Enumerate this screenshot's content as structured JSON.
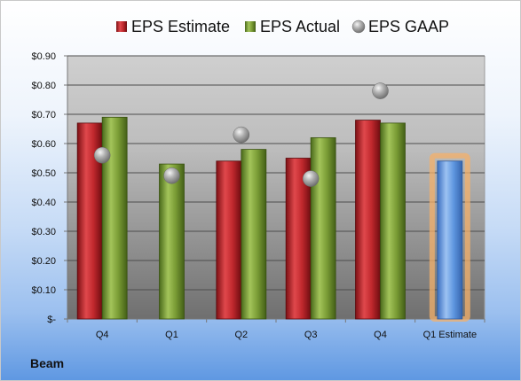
{
  "company_label": "Beam",
  "chart_data": {
    "type": "bar",
    "categories": [
      "Q4",
      "Q1",
      "Q2",
      "Q3",
      "Q4",
      "Q1 Estimate"
    ],
    "series": [
      {
        "name": "EPS Estimate",
        "type": "bar",
        "color": "#c0282d",
        "values": [
          0.67,
          null,
          0.54,
          0.55,
          0.68,
          null
        ]
      },
      {
        "name": "EPS Actual",
        "type": "bar",
        "color": "#7a9c35",
        "values": [
          0.69,
          0.53,
          0.58,
          0.62,
          0.67,
          null
        ]
      },
      {
        "name": "EPS GAAP",
        "type": "scatter",
        "color": "#a6a6a6",
        "values": [
          0.56,
          0.49,
          0.63,
          0.48,
          0.78,
          null
        ]
      },
      {
        "name": "Q1 Estimate",
        "type": "bar",
        "color": "#5f97e0",
        "highlight": "#f4b06a",
        "values": [
          null,
          null,
          null,
          null,
          null,
          0.54
        ]
      }
    ],
    "legend": [
      "EPS Estimate",
      "EPS Actual",
      "EPS GAAP"
    ],
    "legend_position": "top",
    "ylim": [
      0,
      0.9
    ],
    "y_ticks": [
      0,
      0.1,
      0.2,
      0.3,
      0.4,
      0.5,
      0.6,
      0.7,
      0.8,
      0.9
    ],
    "y_tick_labels": [
      "$-",
      "$0.10",
      "$0.20",
      "$0.30",
      "$0.40",
      "$0.50",
      "$0.60",
      "$0.70",
      "$0.80",
      "$0.90"
    ],
    "grid": true
  }
}
